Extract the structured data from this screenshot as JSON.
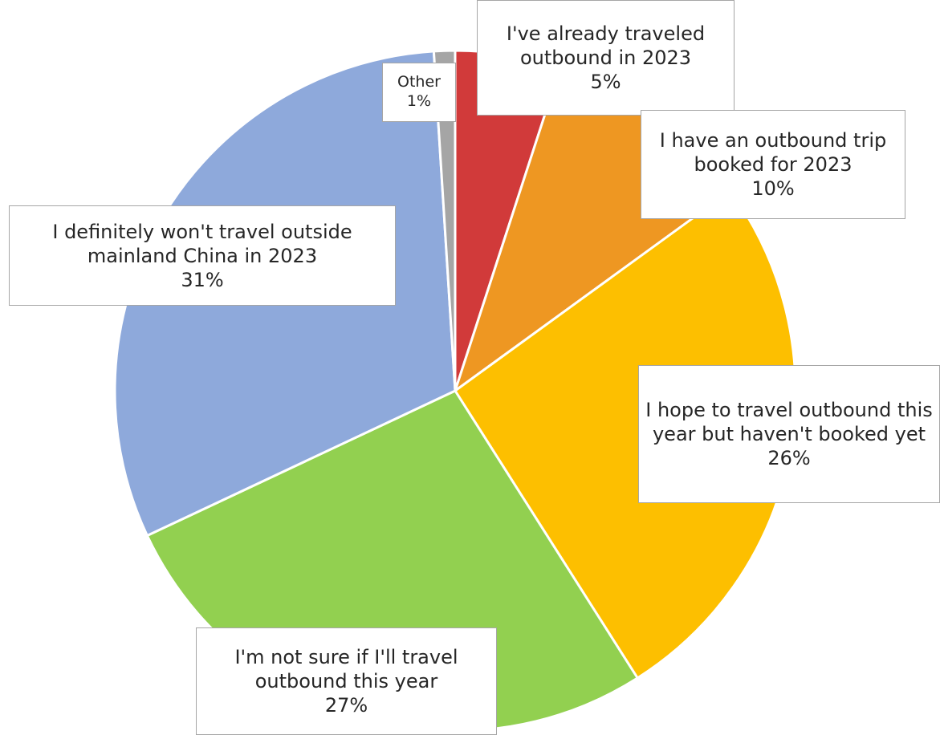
{
  "chart_data": {
    "type": "pie",
    "title": "",
    "start_angle_deg": 0,
    "direction": "clockwise",
    "slices": [
      {
        "label": "I've already traveled outbound in 2023",
        "value": 5,
        "percent_label": "5%",
        "color": "#D13A3A"
      },
      {
        "label": "I have an outbound trip booked for 2023",
        "value": 10,
        "percent_label": "10%",
        "color": "#EE9722"
      },
      {
        "label": "I hope to travel outbound this year but haven't booked yet",
        "value": 26,
        "percent_label": "26%",
        "color": "#FDBF00"
      },
      {
        "label": "I'm not sure if I'll travel outbound this year",
        "value": 27,
        "percent_label": "27%",
        "color": "#92D050"
      },
      {
        "label": "I definitely won't travel outside mainland China in 2023",
        "value": 31,
        "percent_label": "31%",
        "color": "#8EA9DB"
      },
      {
        "label": "Other",
        "value": 1,
        "percent_label": "1%",
        "color": "#A5A5A5"
      }
    ],
    "legend": "none",
    "data_labels": "callouts"
  }
}
